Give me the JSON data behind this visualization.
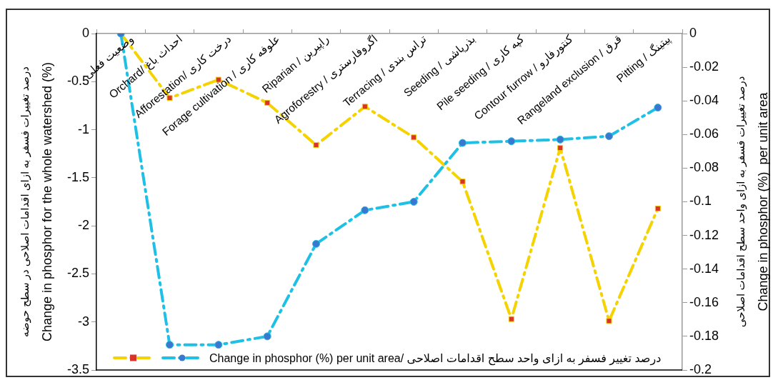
{
  "chart_data": {
    "type": "line",
    "categories": [
      "وضعیت فعلی",
      "Orchard/ احداث باغ",
      "Afforestation/ درخت کاری",
      "Forage cultivation / علوفه کاری",
      "Riparian / راپیرین",
      "Agroforestry / اگروفارستری",
      "Terracing / تراس بندی",
      "Seeding / بذرپاشی",
      "Pile seeding / کپه کاری",
      "Contour furrow / کنتورفارو",
      "Rangeland exclusion / قرق",
      "Pitting / پیتینگ"
    ],
    "series": [
      {
        "color": "#f5d300",
        "marker": "square",
        "line_style": "dashed",
        "values": [
          0,
          -0.67,
          -0.48,
          -0.72,
          -1.16,
          -0.76,
          -1.08,
          -1.54,
          -2.97,
          -1.19,
          -2.99,
          -1.82
        ]
      },
      {
        "name": "Change in phosphor (%)  per unit area/ درصد تغییر فسفر به ازای واحد سطح اقدامات اصلاحی",
        "color": "#1ec0e6",
        "marker": "circle",
        "line_style": "dashed",
        "axis": "y2",
        "values": [
          0,
          -0.185,
          -0.185,
          -0.18,
          -0.125,
          -0.105,
          -0.1,
          -0.065,
          -0.064,
          -0.063,
          -0.061,
          -0.044
        ]
      }
    ],
    "ylabel": "درصد تغییرات فسفر به ازای اقدامات اصلاحی در سطح حوضه\nChange in phosphor for the whole watershed (%)",
    "y2label": "درصد تغییرات فسفر به ازای واحد سطح اقدامات اصلاحی\nChange in phosphor (%)  per unit area",
    "ylim": [
      -3.5,
      0
    ],
    "yticks": [
      -3.5,
      -3,
      -2.5,
      -2,
      -1.5,
      -1,
      -0.5,
      0
    ],
    "y2lim": [
      -0.2,
      0
    ],
    "y2ticks": [
      -0.2,
      -0.18,
      -0.16,
      -0.14,
      -0.12,
      -0.1,
      -0.08,
      -0.06,
      -0.04,
      -0.02,
      0
    ],
    "legend": "bottom",
    "grid": false
  }
}
